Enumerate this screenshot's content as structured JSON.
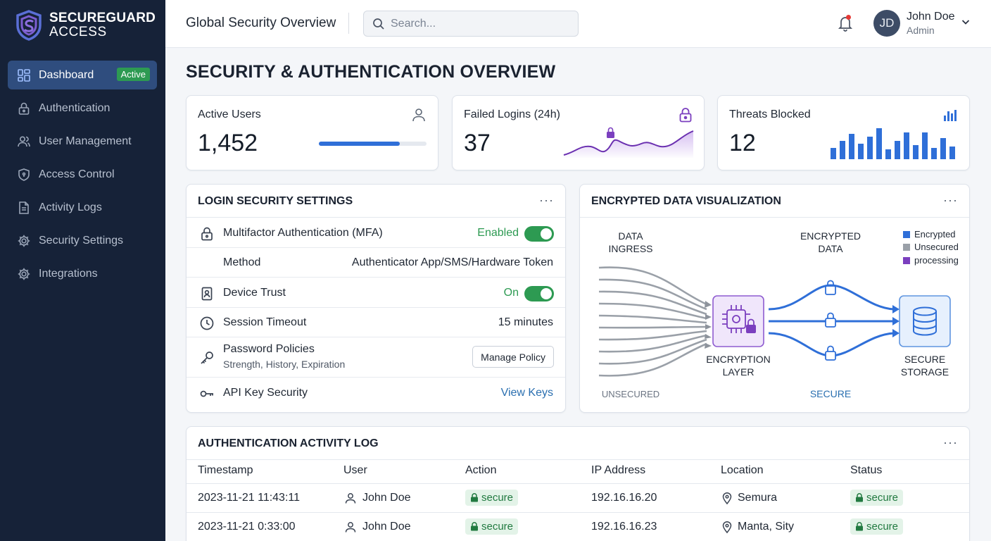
{
  "brand": {
    "line1": "SECUREGUARD",
    "line2": "ACCESS"
  },
  "sidebar": {
    "items": [
      {
        "label": "Dashboard",
        "icon": "dashboard-icon",
        "badge": "Active"
      },
      {
        "label": "Authentication",
        "icon": "lock-icon"
      },
      {
        "label": "User Management",
        "icon": "users-icon"
      },
      {
        "label": "Access Control",
        "icon": "shield-icon"
      },
      {
        "label": "Activity Logs",
        "icon": "document-icon"
      },
      {
        "label": "Security Settings",
        "icon": "gear-icon"
      },
      {
        "label": "Integrations",
        "icon": "gear-icon"
      }
    ]
  },
  "header": {
    "title": "Global Security Overview",
    "search_placeholder": "Search...",
    "user": {
      "initials": "JD",
      "name": "John Doe",
      "role": "Admin"
    }
  },
  "page": {
    "title": "SECURITY & AUTHENTICATION OVERVIEW"
  },
  "stats": {
    "active_users": {
      "label": "Active Users",
      "value": "1,452",
      "progress": 0.75
    },
    "failed_logins": {
      "label": "Failed Logins (24h)",
      "value": "37"
    },
    "threats": {
      "label": "Threats Blocked",
      "value": "12"
    }
  },
  "login_settings": {
    "title": "LOGIN SECURITY SETTINGS",
    "menu": "···",
    "mfa": {
      "label": "Multifactor Authentication (MFA)",
      "status": "Enabled"
    },
    "method": {
      "label": "Method",
      "value": "Authenticator App/SMS/Hardware Token"
    },
    "device_trust": {
      "label": "Device Trust",
      "status": "On"
    },
    "session": {
      "label": "Session Timeout",
      "value": "15 minutes"
    },
    "password": {
      "label": "Password Policies",
      "sub": "Strength, History, Expiration",
      "button": "Manage Policy"
    },
    "api": {
      "label": "API Key Security",
      "link": "View Keys"
    }
  },
  "encrypted_viz": {
    "title": "ENCRYPTED DATA VISUALIZATION",
    "menu": "···",
    "ingress_line1": "DATA",
    "ingress_line2": "INGRESS",
    "encrypted_line1": "ENCRYPTED",
    "encrypted_line2": "DATA",
    "layer_line1": "ENCRYPTION",
    "layer_line2": "LAYER",
    "storage_line1": "SECURE",
    "storage_line2": "STORAGE",
    "unsecured": "UNSECURED",
    "secure": "SECURE",
    "legend": [
      {
        "label": "Encrypted",
        "color": "#2f6fd8"
      },
      {
        "label": "Unsecured",
        "color": "#9aa0a8"
      },
      {
        "label": "processing",
        "color": "#7b3fbf"
      }
    ]
  },
  "activity_log": {
    "title": "AUTHENTICATION ACTIVITY LOG",
    "menu": "···",
    "columns": [
      "Timestamp",
      "User",
      "Action",
      "IP Address",
      "Location",
      "Status"
    ],
    "rows": [
      {
        "timestamp": "2023-11-21 11:43:11",
        "user": "John Doe",
        "action": "secure",
        "ip": "192.16.16.20",
        "location": "Semura",
        "status": "secure"
      },
      {
        "timestamp": "2023-11-21 0:33:00",
        "user": "John Doe",
        "action": "secure",
        "ip": "192.16.16.23",
        "location": "Manta, Sity",
        "status": "secure"
      }
    ]
  },
  "colors": {
    "sidebar": "#162238",
    "active_nav": "#2f4d7e",
    "green": "#2d9a52",
    "blue": "#2f6fd8",
    "purple": "#7b3fbf"
  }
}
